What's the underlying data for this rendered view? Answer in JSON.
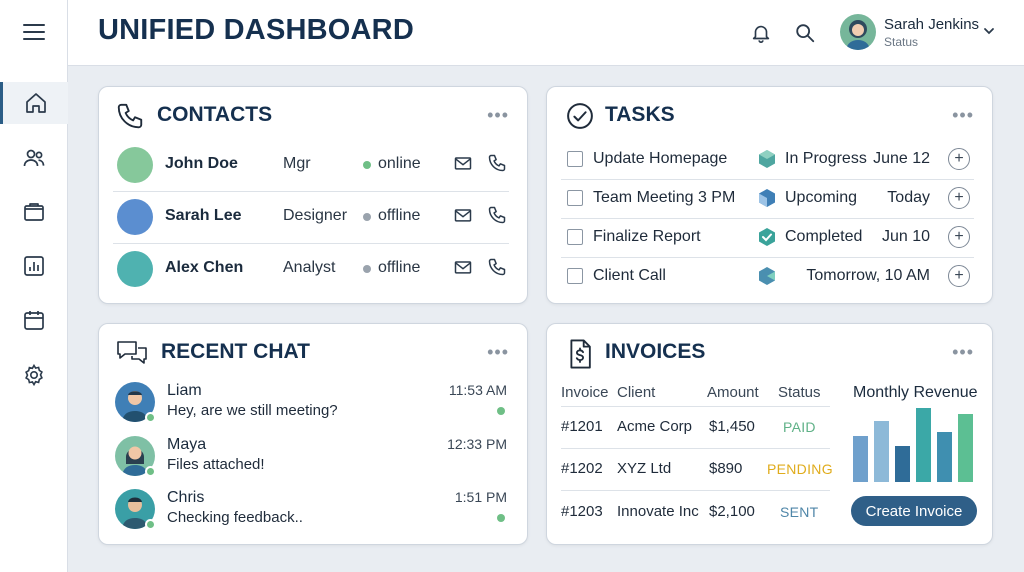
{
  "header": {
    "title": "UNIFIED DASHBOARD"
  },
  "user": {
    "name": "Sarah Jenkins",
    "status": "Status"
  },
  "sidebar": {
    "items": [
      "home-icon",
      "users-icon",
      "folder-icon",
      "chart-icon",
      "calendar-icon",
      "gear-icon"
    ],
    "active": "home-icon"
  },
  "contacts": {
    "title": "CONTACTS",
    "rows": [
      {
        "name": "John Doe",
        "role": "Mgr",
        "status": "online",
        "avatar_color": "#86c89b",
        "status_color": "#6fbf86"
      },
      {
        "name": "Sarah Lee",
        "role": "Designer",
        "status": "offline",
        "avatar_color": "#5b8ed0",
        "status_color": "#9aa3ad"
      },
      {
        "name": "Alex Chen",
        "role": "Analyst",
        "status": "offline",
        "avatar_color": "#4fb2b0",
        "status_color": "#9aa3ad"
      }
    ]
  },
  "tasks": {
    "title": "TASKS",
    "rows": [
      {
        "name": "Update Homepage",
        "status": "In Progress",
        "date": "June 12",
        "badge_color": "#4fa6a0"
      },
      {
        "name": "Team Meeting 3 PM",
        "status": "Upcoming",
        "date": "Today",
        "badge_color": "#3f7fb6"
      },
      {
        "name": "Finalize Report",
        "status": "Completed",
        "date": "Jun 10",
        "badge_color": "#3aa39a"
      },
      {
        "name": "Client Call",
        "status": "",
        "date": "Tomorrow, 10 AM",
        "badge_color": "#4a8fb0"
      }
    ]
  },
  "chat": {
    "title": "RECENT CHAT",
    "rows": [
      {
        "name": "Liam",
        "message": "Hey, are we still meeting?",
        "time": "11:53 AM"
      },
      {
        "name": "Maya",
        "message": "Files attached!",
        "time": "12:33 PM"
      },
      {
        "name": "Chris",
        "message": "Checking feedback..",
        "time": "1:51 PM"
      }
    ]
  },
  "invoices": {
    "title": "INVOICES",
    "columns": [
      "Invoice",
      "Client",
      "Amount",
      "Status"
    ],
    "rows": [
      {
        "id": "#1201",
        "client": "Acme Corp",
        "amount": "$1,450",
        "status": "PAID",
        "status_color": "#5fb187"
      },
      {
        "id": "#1202",
        "client": "XYZ Ltd",
        "amount": "$890",
        "status": "PENDING",
        "status_color": "#e0ac1c"
      },
      {
        "id": "#1203",
        "client": "Innovate Inc",
        "amount": "$2,100",
        "status": "SENT",
        "status_color": "#4f86a8"
      }
    ],
    "revenue_title": "Monthly Revenue",
    "create_label": "Create Invoice"
  },
  "chart_data": {
    "type": "bar",
    "title": "Monthly Revenue",
    "values": [
      0.62,
      0.82,
      0.48,
      1.0,
      0.68,
      0.92
    ],
    "colors": [
      "#6fa0cc",
      "#8db9d8",
      "#2f6c98",
      "#3ba8a7",
      "#3f8fb0",
      "#5cbf93"
    ]
  },
  "colors": {
    "brand": "#15304f",
    "accent": "#2f5f88",
    "online": "#6fbf86"
  }
}
